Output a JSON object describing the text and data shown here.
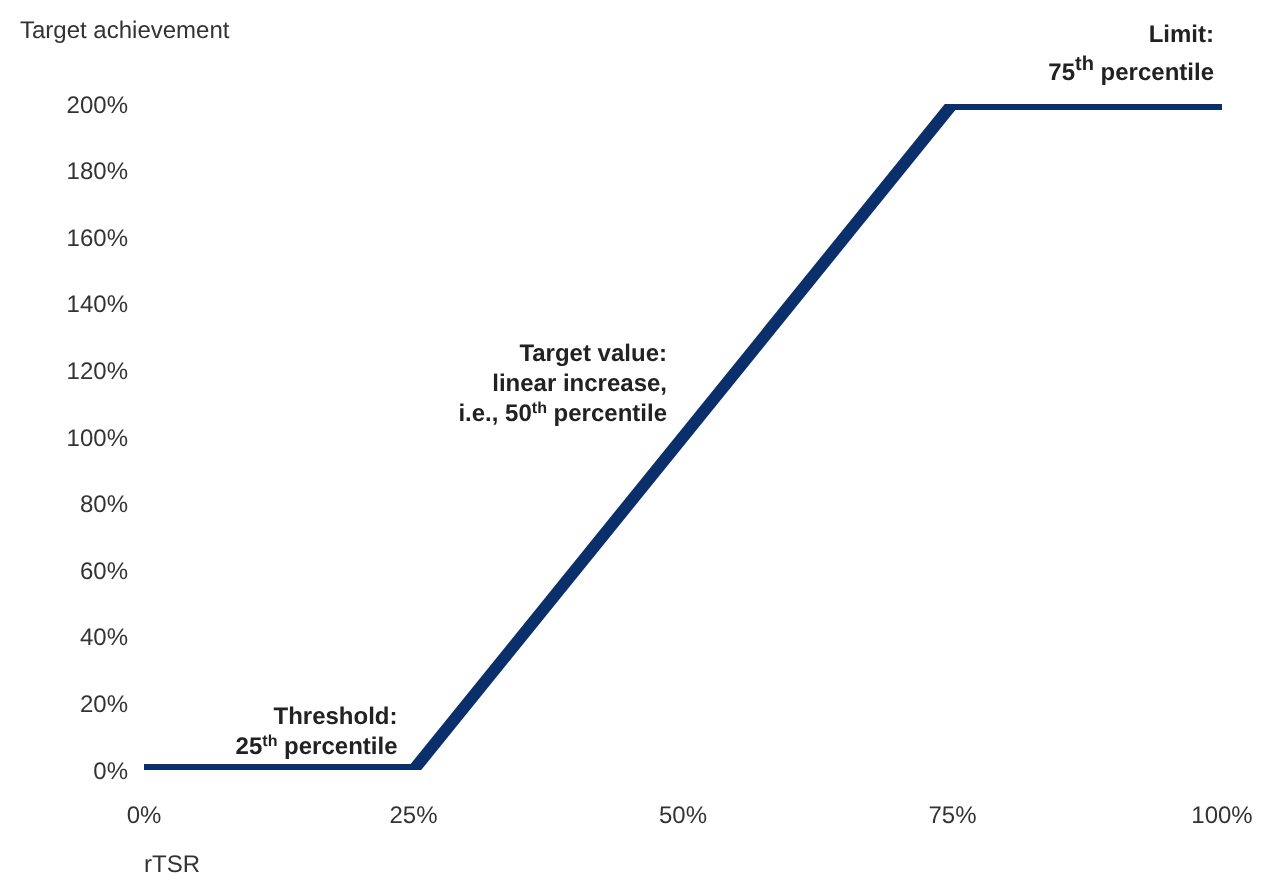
{
  "chart_data": {
    "type": "line",
    "ylabel": "Target achievement",
    "xlabel": "rTSR",
    "x": [
      0,
      25,
      75,
      100
    ],
    "series": [
      {
        "color": "#0a2f6b",
        "values": [
          0,
          0,
          200,
          200
        ]
      }
    ],
    "xlim": [
      0,
      100
    ],
    "xticks": [
      {
        "value": 0,
        "label": "0%"
      },
      {
        "value": 25,
        "label": "25%"
      },
      {
        "value": 50,
        "label": "50%"
      },
      {
        "value": 75,
        "label": "75%"
      },
      {
        "value": 100,
        "label": "100%"
      }
    ],
    "ylim": [
      0,
      200
    ],
    "yticks": [
      {
        "value": 0,
        "label": "0%"
      },
      {
        "value": 20,
        "label": "20%"
      },
      {
        "value": 40,
        "label": "40%"
      },
      {
        "value": 60,
        "label": "60%"
      },
      {
        "value": 80,
        "label": "80%"
      },
      {
        "value": 100,
        "label": "100%"
      },
      {
        "value": 120,
        "label": "120%"
      },
      {
        "value": 140,
        "label": "140%"
      },
      {
        "value": 160,
        "label": "160%"
      },
      {
        "value": 180,
        "label": "180%"
      },
      {
        "value": 200,
        "label": "200%"
      }
    ],
    "annotations": [
      {
        "text": "Threshold:\n25$^{th}$ percentile",
        "x": 25,
        "y": 0
      },
      {
        "text": "Target value:\nlinear increase,\ni.e., 50$^{th}$ percentile",
        "x": 50,
        "y": 100
      },
      "Limit:\n75$^{th}$ percentile"
    ],
    "grid": false,
    "marker": "none",
    "line_style": "solid"
  }
}
